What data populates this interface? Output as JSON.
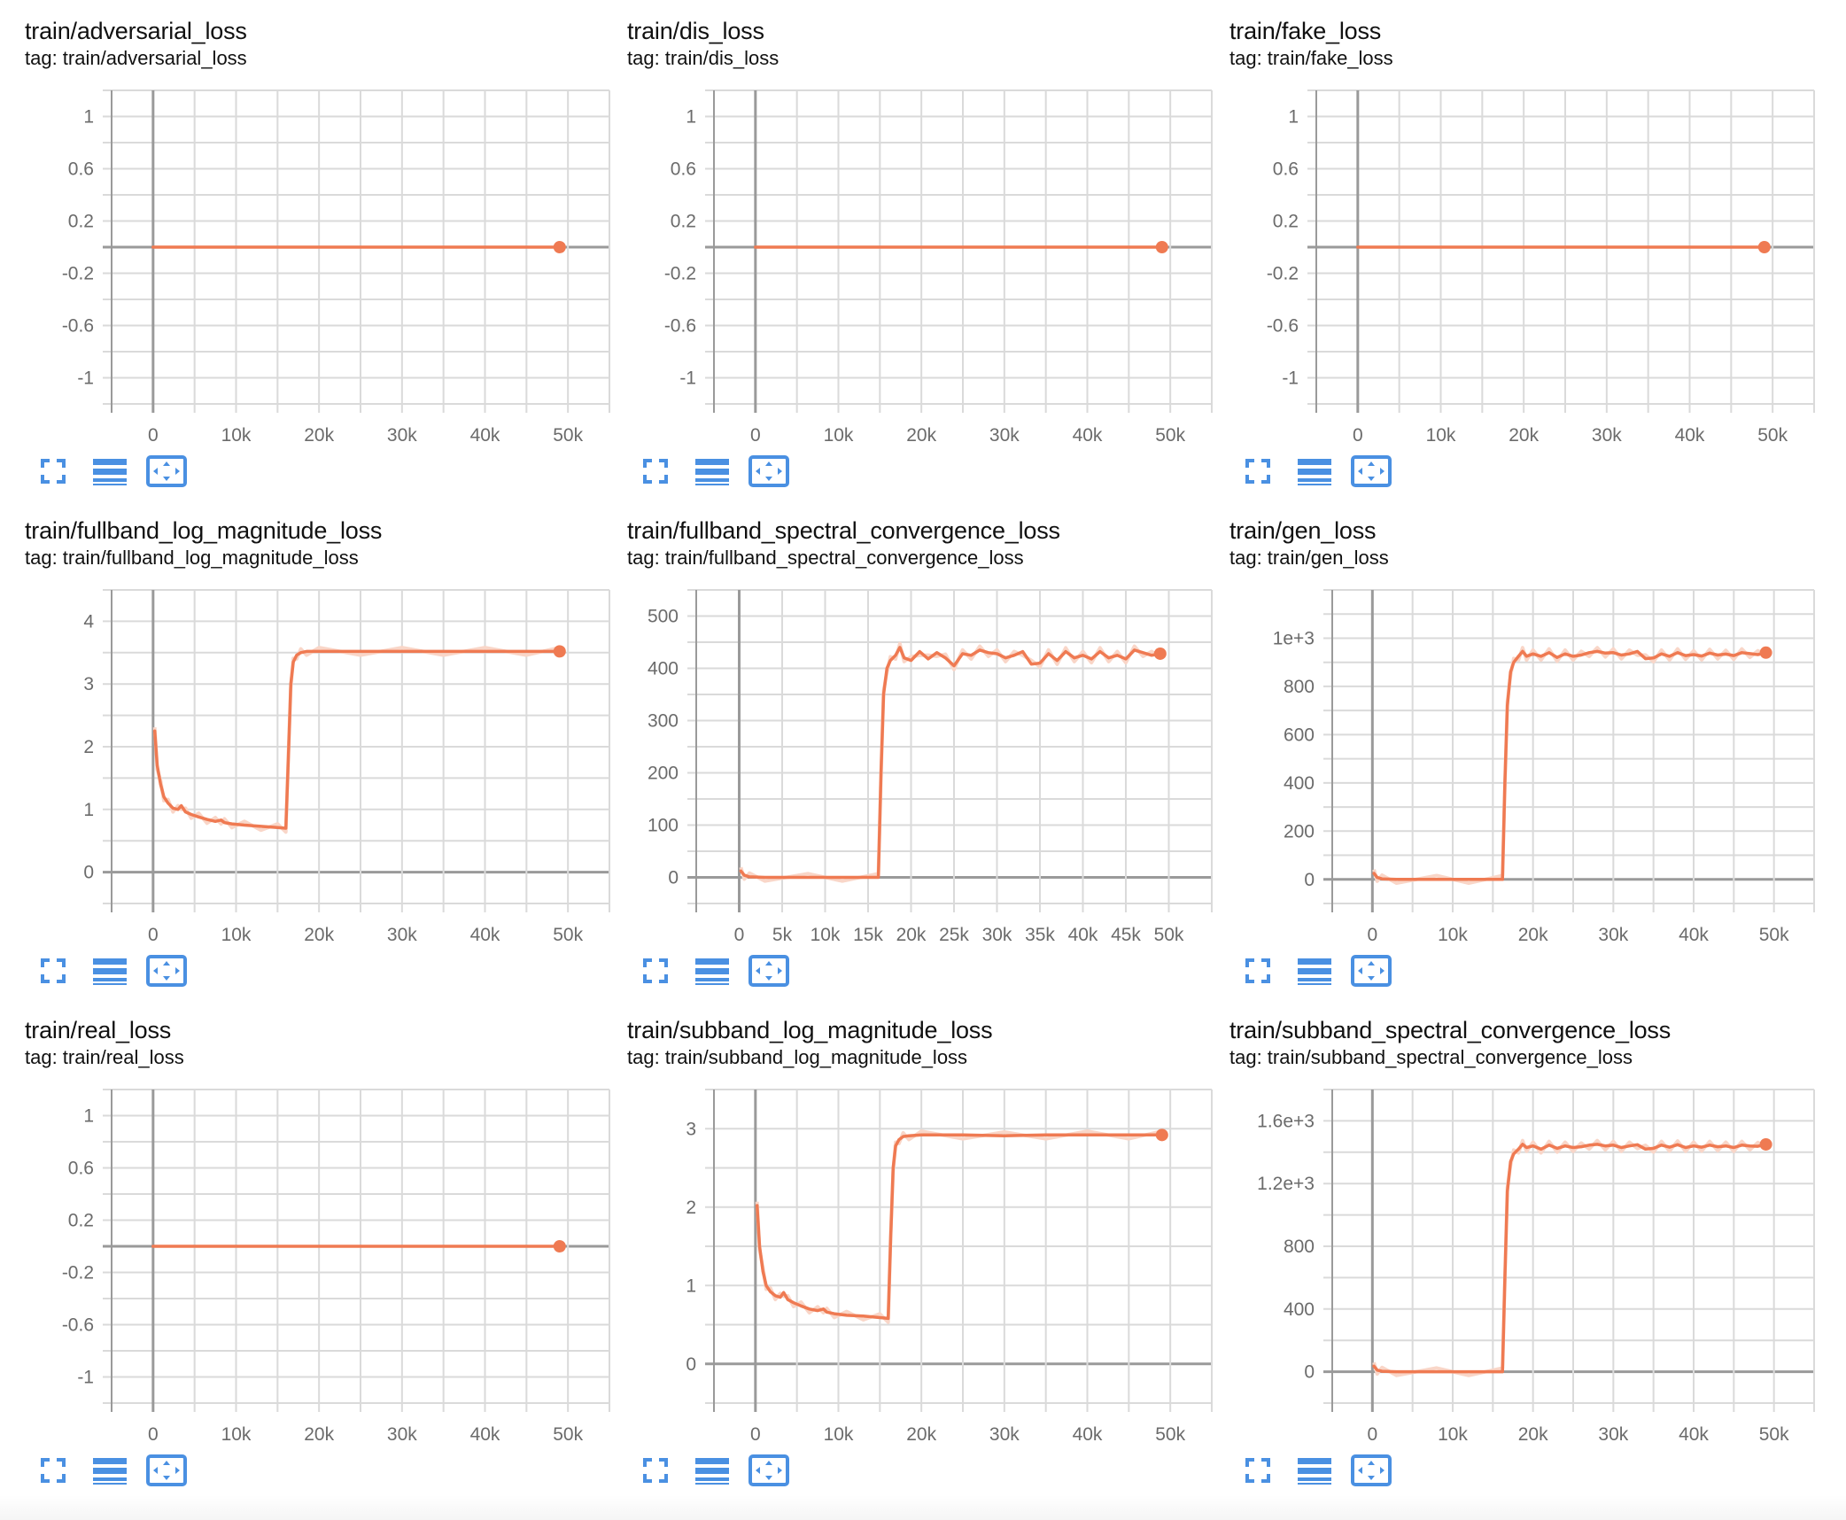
{
  "colors": {
    "line": "#ef7a52",
    "line_raw": "#f9d6c8",
    "grid": "#dadada",
    "axis": "#9a9a9a",
    "icon": "#4a90e2",
    "tick_text": "#6b6b6b"
  },
  "icons": {
    "fullscreen": "fullscreen-icon",
    "toggle_log": "lines-icon",
    "fit_domain": "fit-domain-icon"
  },
  "panels": [
    {
      "title": "train/adversarial_loss",
      "tag": "tag: train/adversarial_loss"
    },
    {
      "title": "train/dis_loss",
      "tag": "tag: train/dis_loss"
    },
    {
      "title": "train/fake_loss",
      "tag": "tag: train/fake_loss"
    },
    {
      "title": "train/fullband_log_magnitude_loss",
      "tag": "tag: train/fullband_log_magnitude_loss"
    },
    {
      "title": "train/fullband_spectral_convergence_loss",
      "tag": "tag: train/fullband_spectral_convergence_loss"
    },
    {
      "title": "train/gen_loss",
      "tag": "tag: train/gen_loss"
    },
    {
      "title": "train/real_loss",
      "tag": "tag: train/real_loss"
    },
    {
      "title": "train/subband_log_magnitude_loss",
      "tag": "tag: train/subband_log_magnitude_loss"
    },
    {
      "title": "train/subband_spectral_convergence_loss",
      "tag": "tag: train/subband_spectral_convergence_loss"
    }
  ],
  "chart_data": [
    {
      "type": "line",
      "title": "train/adversarial_loss",
      "xlabel": "",
      "ylabel": "",
      "xlim": [
        -5000,
        55000
      ],
      "ylim": [
        -1.2,
        1.2
      ],
      "x_ticks": [
        0,
        10000,
        20000,
        30000,
        40000,
        50000
      ],
      "x_tick_labels": [
        "0",
        "10k",
        "20k",
        "30k",
        "40k",
        "50k"
      ],
      "x_grid_step": 5000,
      "y_ticks": [
        1,
        0.6,
        0.2,
        -0.2,
        -0.6,
        -1
      ],
      "y_tick_labels": [
        "1",
        "0.6",
        "0.2",
        "-0.2",
        "-0.6",
        "-1"
      ],
      "y_grid_step": 0.2,
      "grid": true,
      "legend": "none",
      "series": [
        {
          "name": "train/adversarial_loss",
          "x": [
            0,
            49000
          ],
          "y": [
            0,
            0
          ]
        }
      ]
    },
    {
      "type": "line",
      "title": "train/dis_loss",
      "xlabel": "",
      "ylabel": "",
      "xlim": [
        -5000,
        55000
      ],
      "ylim": [
        -1.2,
        1.2
      ],
      "x_ticks": [
        0,
        10000,
        20000,
        30000,
        40000,
        50000
      ],
      "x_tick_labels": [
        "0",
        "10k",
        "20k",
        "30k",
        "40k",
        "50k"
      ],
      "x_grid_step": 5000,
      "y_ticks": [
        1,
        0.6,
        0.2,
        -0.2,
        -0.6,
        -1
      ],
      "y_tick_labels": [
        "1",
        "0.6",
        "0.2",
        "-0.2",
        "-0.6",
        "-1"
      ],
      "y_grid_step": 0.2,
      "grid": true,
      "legend": "none",
      "series": [
        {
          "name": "train/dis_loss",
          "x": [
            0,
            49000
          ],
          "y": [
            0,
            0
          ]
        }
      ]
    },
    {
      "type": "line",
      "title": "train/fake_loss",
      "xlabel": "",
      "ylabel": "",
      "xlim": [
        -5000,
        55000
      ],
      "ylim": [
        -1.2,
        1.2
      ],
      "x_ticks": [
        0,
        10000,
        20000,
        30000,
        40000,
        50000
      ],
      "x_tick_labels": [
        "0",
        "10k",
        "20k",
        "30k",
        "40k",
        "50k"
      ],
      "x_grid_step": 5000,
      "y_ticks": [
        1,
        0.6,
        0.2,
        -0.2,
        -0.6,
        -1
      ],
      "y_tick_labels": [
        "1",
        "0.6",
        "0.2",
        "-0.2",
        "-0.6",
        "-1"
      ],
      "y_grid_step": 0.2,
      "grid": true,
      "legend": "none",
      "series": [
        {
          "name": "train/fake_loss",
          "x": [
            0,
            49000
          ],
          "y": [
            0,
            0
          ]
        }
      ]
    },
    {
      "type": "line",
      "title": "train/fullband_log_magnitude_loss",
      "xlabel": "",
      "ylabel": "",
      "xlim": [
        -5000,
        55000
      ],
      "ylim": [
        -0.5,
        4.5
      ],
      "x_ticks": [
        0,
        10000,
        20000,
        30000,
        40000,
        50000
      ],
      "x_tick_labels": [
        "0",
        "10k",
        "20k",
        "30k",
        "40k",
        "50k"
      ],
      "x_grid_step": 5000,
      "y_ticks": [
        4,
        3,
        2,
        1,
        0
      ],
      "y_tick_labels": [
        "4",
        "3",
        "2",
        "1",
        "0"
      ],
      "y_grid_step": 0.5,
      "grid": true,
      "legend": "none",
      "series": [
        {
          "name": "train/fullband_log_magnitude_loss",
          "x": [
            200,
            500,
            900,
            1300,
            1800,
            2400,
            3000,
            3400,
            3900,
            4600,
            5500,
            6500,
            7500,
            8200,
            8600,
            9500,
            11000,
            13000,
            15000,
            16000,
            16300,
            16600,
            16900,
            17300,
            17800,
            18500,
            20000,
            25000,
            30000,
            35000,
            40000,
            45000,
            49000
          ],
          "y": [
            2.25,
            1.7,
            1.4,
            1.2,
            1.1,
            1.02,
            1.0,
            1.06,
            0.96,
            0.92,
            0.88,
            0.84,
            0.81,
            0.83,
            0.79,
            0.77,
            0.75,
            0.73,
            0.71,
            0.7,
            1.8,
            3.0,
            3.35,
            3.46,
            3.5,
            3.52,
            3.52,
            3.52,
            3.52,
            3.52,
            3.52,
            3.52,
            3.52
          ]
        }
      ]
    },
    {
      "type": "line",
      "title": "train/fullband_spectral_convergence_loss",
      "xlabel": "",
      "ylabel": "",
      "xlim": [
        -5000,
        55000
      ],
      "ylim": [
        -50,
        550
      ],
      "x_ticks": [
        0,
        5000,
        10000,
        15000,
        20000,
        25000,
        30000,
        35000,
        40000,
        45000,
        50000
      ],
      "x_tick_labels": [
        "0",
        "5k",
        "10k",
        "15k",
        "20k",
        "25k",
        "30k",
        "35k",
        "40k",
        "45k",
        "50k"
      ],
      "x_grid_step": 5000,
      "y_ticks": [
        500,
        400,
        300,
        200,
        100,
        0
      ],
      "y_tick_labels": [
        "500",
        "400",
        "300",
        "200",
        "100",
        "0"
      ],
      "y_grid_step": 50,
      "grid": true,
      "legend": "none",
      "series": [
        {
          "name": "train/fullband_spectral_convergence_loss",
          "x": [
            200,
            600,
            1200,
            3000,
            8000,
            12000,
            16200,
            16500,
            16800,
            17200,
            17600,
            18200,
            18700,
            19200,
            20000,
            21000,
            22000,
            23000,
            24000,
            25000,
            26000,
            27000,
            28000,
            29000,
            30000,
            31000,
            32000,
            33000,
            34000,
            35000,
            36000,
            37000,
            38000,
            39000,
            40000,
            41000,
            42000,
            43000,
            44000,
            45000,
            46000,
            47000,
            48000,
            49000
          ],
          "y": [
            12,
            4,
            1,
            0,
            0,
            0,
            0,
            200,
            350,
            400,
            415,
            425,
            440,
            420,
            415,
            432,
            418,
            430,
            420,
            405,
            428,
            425,
            435,
            430,
            428,
            420,
            425,
            432,
            408,
            410,
            428,
            415,
            432,
            420,
            425,
            418,
            432,
            420,
            425,
            418,
            435,
            430,
            425,
            428
          ]
        }
      ]
    },
    {
      "type": "line",
      "title": "train/gen_loss",
      "xlabel": "",
      "ylabel": "",
      "xlim": [
        -5000,
        55000
      ],
      "ylim": [
        -100,
        1200
      ],
      "x_ticks": [
        0,
        10000,
        20000,
        30000,
        40000,
        50000
      ],
      "x_tick_labels": [
        "0",
        "10k",
        "20k",
        "30k",
        "40k",
        "50k"
      ],
      "x_grid_step": 5000,
      "y_ticks": [
        1000,
        800,
        600,
        400,
        200,
        0
      ],
      "y_tick_labels": [
        "1e+3",
        "800",
        "600",
        "400",
        "200",
        "0"
      ],
      "y_grid_step": 100,
      "grid": true,
      "legend": "none",
      "series": [
        {
          "name": "train/gen_loss",
          "x": [
            200,
            600,
            1200,
            3000,
            8000,
            12000,
            16200,
            16500,
            16800,
            17200,
            17600,
            18200,
            18700,
            19200,
            20000,
            21000,
            22000,
            23000,
            24000,
            25000,
            26000,
            27000,
            28000,
            29000,
            30000,
            31000,
            32000,
            33000,
            34000,
            35000,
            36000,
            37000,
            38000,
            39000,
            40000,
            41000,
            42000,
            43000,
            44000,
            45000,
            46000,
            47000,
            48000,
            49000
          ],
          "y": [
            25,
            8,
            2,
            0,
            0,
            0,
            0,
            400,
            720,
            860,
            900,
            925,
            945,
            925,
            935,
            925,
            940,
            920,
            935,
            925,
            930,
            940,
            945,
            938,
            940,
            930,
            935,
            945,
            915,
            918,
            935,
            925,
            940,
            928,
            932,
            926,
            938,
            930,
            934,
            928,
            940,
            936,
            932,
            940
          ]
        }
      ]
    },
    {
      "type": "line",
      "title": "train/real_loss",
      "xlabel": "",
      "ylabel": "",
      "xlim": [
        -5000,
        55000
      ],
      "ylim": [
        -1.2,
        1.2
      ],
      "x_ticks": [
        0,
        10000,
        20000,
        30000,
        40000,
        50000
      ],
      "x_tick_labels": [
        "0",
        "10k",
        "20k",
        "30k",
        "40k",
        "50k"
      ],
      "x_grid_step": 5000,
      "y_ticks": [
        1,
        0.6,
        0.2,
        -0.2,
        -0.6,
        -1
      ],
      "y_tick_labels": [
        "1",
        "0.6",
        "0.2",
        "-0.2",
        "-0.6",
        "-1"
      ],
      "y_grid_step": 0.2,
      "grid": true,
      "legend": "none",
      "series": [
        {
          "name": "train/real_loss",
          "x": [
            0,
            49000
          ],
          "y": [
            0,
            0
          ]
        }
      ]
    },
    {
      "type": "line",
      "title": "train/subband_log_magnitude_loss",
      "xlabel": "",
      "ylabel": "",
      "xlim": [
        -5000,
        55000
      ],
      "ylim": [
        -0.5,
        3.5
      ],
      "x_ticks": [
        0,
        10000,
        20000,
        30000,
        40000,
        50000
      ],
      "x_tick_labels": [
        "0",
        "10k",
        "20k",
        "30k",
        "40k",
        "50k"
      ],
      "x_grid_step": 5000,
      "y_ticks": [
        3,
        2,
        1,
        0
      ],
      "y_tick_labels": [
        "3",
        "2",
        "1",
        "0"
      ],
      "y_grid_step": 0.5,
      "grid": true,
      "legend": "none",
      "series": [
        {
          "name": "train/subband_log_magnitude_loss",
          "x": [
            200,
            500,
            900,
            1300,
            1800,
            2400,
            3000,
            3400,
            3900,
            4600,
            5500,
            6500,
            7500,
            8200,
            8600,
            9500,
            11000,
            13000,
            15000,
            16000,
            16300,
            16600,
            16900,
            17300,
            17800,
            18500,
            20000,
            25000,
            30000,
            35000,
            40000,
            45000,
            49000
          ],
          "y": [
            2.02,
            1.5,
            1.18,
            1.0,
            0.92,
            0.87,
            0.85,
            0.91,
            0.82,
            0.78,
            0.74,
            0.7,
            0.68,
            0.7,
            0.66,
            0.64,
            0.62,
            0.61,
            0.59,
            0.58,
            1.6,
            2.5,
            2.78,
            2.86,
            2.9,
            2.91,
            2.92,
            2.92,
            2.91,
            2.92,
            2.92,
            2.92,
            2.92
          ]
        }
      ]
    },
    {
      "type": "line",
      "title": "train/subband_spectral_convergence_loss",
      "xlabel": "",
      "ylabel": "",
      "xlim": [
        -5000,
        55000
      ],
      "ylim": [
        -200,
        1800
      ],
      "x_ticks": [
        0,
        10000,
        20000,
        30000,
        40000,
        50000
      ],
      "x_tick_labels": [
        "0",
        "10k",
        "20k",
        "30k",
        "40k",
        "50k"
      ],
      "x_grid_step": 5000,
      "y_ticks": [
        1600,
        1200,
        800,
        400,
        0
      ],
      "y_tick_labels": [
        "1.6e+3",
        "1.2e+3",
        "800",
        "400",
        "0"
      ],
      "y_grid_step": 200,
      "grid": true,
      "legend": "none",
      "series": [
        {
          "name": "train/subband_spectral_convergence_loss",
          "x": [
            200,
            600,
            1200,
            3000,
            8000,
            12000,
            16200,
            16500,
            16800,
            17200,
            17600,
            18200,
            18700,
            19200,
            20000,
            21000,
            22000,
            23000,
            24000,
            25000,
            26000,
            27000,
            28000,
            29000,
            30000,
            31000,
            32000,
            33000,
            34000,
            35000,
            36000,
            37000,
            38000,
            39000,
            40000,
            41000,
            42000,
            43000,
            44000,
            45000,
            46000,
            47000,
            48000,
            49000
          ],
          "y": [
            35,
            10,
            3,
            0,
            0,
            0,
            0,
            600,
            1150,
            1340,
            1390,
            1420,
            1450,
            1430,
            1440,
            1420,
            1445,
            1425,
            1440,
            1430,
            1435,
            1445,
            1450,
            1440,
            1445,
            1430,
            1440,
            1448,
            1420,
            1425,
            1445,
            1432,
            1448,
            1430,
            1440,
            1432,
            1445,
            1435,
            1440,
            1430,
            1445,
            1440,
            1438,
            1450
          ]
        }
      ]
    }
  ]
}
